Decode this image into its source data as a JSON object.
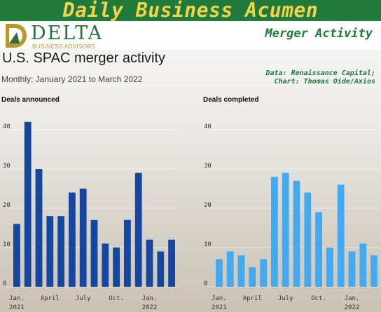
{
  "header": {
    "banner_title": "Daily Business Acumen",
    "section_label": "Merger Activity"
  },
  "logo": {
    "name": "DELTA",
    "tagline": "BUSINESS ADVISORS"
  },
  "colors": {
    "banner": "#1f7a3c",
    "banner_text": "#f3d34a",
    "announced": "#1546a0",
    "completed": "#43a9f0"
  },
  "chart_data": {
    "title": "U.S. SPAC merger activity",
    "subtitle": "Monthly; January 2021 to March 2022",
    "source": [
      "Data: Renaissance Capital;",
      "Chart: Thomas Oide/Axios"
    ],
    "type": "bar",
    "categories": [
      "2021-01",
      "2021-02",
      "2021-03",
      "2021-04",
      "2021-05",
      "2021-06",
      "2021-07",
      "2021-08",
      "2021-09",
      "2021-10",
      "2021-11",
      "2021-12",
      "2022-01",
      "2022-02",
      "2022-03"
    ],
    "ylim": [
      0,
      45
    ],
    "yticks": [
      0,
      10,
      20,
      30,
      40
    ],
    "xtick_labels": [
      {
        "index": 0,
        "line1": "Jan.",
        "line2": "2021"
      },
      {
        "index": 3,
        "line1": "April",
        "line2": ""
      },
      {
        "index": 6,
        "line1": "July",
        "line2": ""
      },
      {
        "index": 9,
        "line1": "Oct.",
        "line2": ""
      },
      {
        "index": 12,
        "line1": "Jan.",
        "line2": "2022"
      }
    ],
    "series": [
      {
        "name": "Deals announced",
        "values": [
          16,
          42,
          30,
          18,
          18,
          24,
          25,
          17,
          11,
          10,
          17,
          29,
          12,
          9,
          12
        ]
      },
      {
        "name": "Deals completed",
        "values": [
          7,
          9,
          8,
          5,
          7,
          28,
          29,
          27,
          24,
          19,
          10,
          26,
          9,
          11,
          8
        ]
      }
    ]
  }
}
